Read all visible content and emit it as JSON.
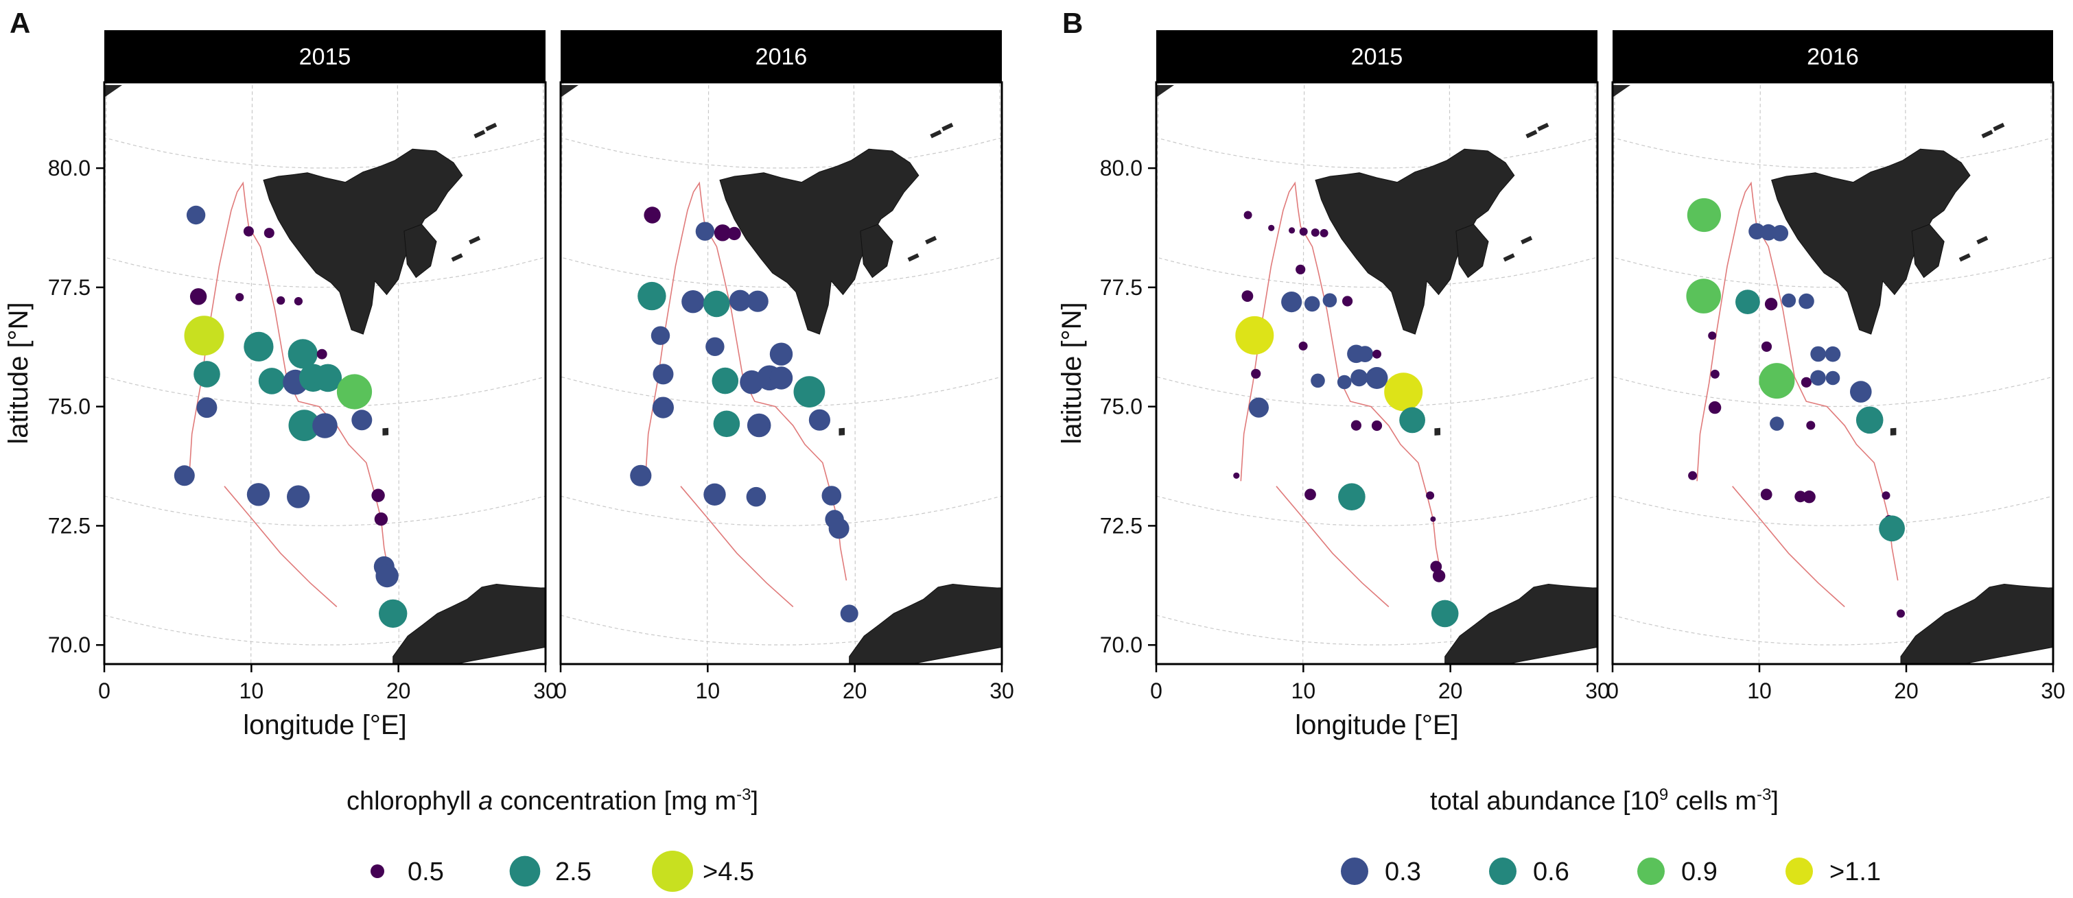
{
  "colors": {
    "strip": "#000000",
    "strip_text": "#ffffff",
    "land": "#262626",
    "grid": "#c8c8c8",
    "contour": "#e07a7a",
    "c_purple": "#440154",
    "c_indigo": "#3b4f8c",
    "c_teal": "#24877d",
    "c_green": "#5ac25a",
    "c_yellow": "#c8e020",
    "c_bright_yellow": "#dde318"
  },
  "chart_data": [
    {
      "type": "scatter",
      "panel_label": "A",
      "facets": [
        "2015",
        "2016"
      ],
      "xlabel": "longitude [°E]",
      "ylabel": "latitude [°N]",
      "xlim": [
        0,
        30
      ],
      "ylim": [
        69.6,
        81.8
      ],
      "x_ticks": [
        0,
        10,
        20,
        30
      ],
      "y_ticks": [
        70.0,
        72.5,
        75.0,
        77.5,
        80.0
      ],
      "legend": {
        "title_pre": "chlorophyll ",
        "title_italic": "a",
        "title_post": " concentration [mg m",
        "title_sup": "-3",
        "title_end": "]",
        "items": [
          {
            "label": "0.5",
            "color": "#440154",
            "size": 0.5
          },
          {
            "label": "2.5",
            "color": "#24877d",
            "size": 2.5
          },
          {
            "label": ">4.5",
            "color": "#c8e020",
            "size": 4.5
          }
        ]
      },
      "series": [
        {
          "name": "2015",
          "points": [
            {
              "x": 6.2,
              "y": 78.8,
              "v": 1.0
            },
            {
              "x": 9.8,
              "y": 78.6,
              "v": 0.3
            },
            {
              "x": 11.2,
              "y": 78.6,
              "v": 0.3
            },
            {
              "x": 6.4,
              "y": 77.1,
              "v": 0.8
            },
            {
              "x": 9.2,
              "y": 77.2,
              "v": 0.2
            },
            {
              "x": 12.0,
              "y": 77.2,
              "v": 0.2
            },
            {
              "x": 13.2,
              "y": 77.2,
              "v": 0.2
            },
            {
              "x": 6.8,
              "y": 76.3,
              "v": 4.8
            },
            {
              "x": 10.5,
              "y": 76.2,
              "v": 2.5
            },
            {
              "x": 13.5,
              "y": 76.1,
              "v": 2.5
            },
            {
              "x": 14.8,
              "y": 76.1,
              "v": 0.3
            },
            {
              "x": 7.0,
              "y": 75.5,
              "v": 2.0
            },
            {
              "x": 11.4,
              "y": 75.5,
              "v": 2.0
            },
            {
              "x": 13.0,
              "y": 75.5,
              "v": 1.8
            },
            {
              "x": 14.2,
              "y": 75.6,
              "v": 2.2
            },
            {
              "x": 15.2,
              "y": 75.6,
              "v": 2.2
            },
            {
              "x": 17.0,
              "y": 75.3,
              "v": 3.5
            },
            {
              "x": 7.0,
              "y": 74.8,
              "v": 1.2
            },
            {
              "x": 13.6,
              "y": 74.6,
              "v": 2.8
            },
            {
              "x": 15.0,
              "y": 74.6,
              "v": 1.8
            },
            {
              "x": 17.5,
              "y": 74.7,
              "v": 1.2
            },
            {
              "x": 5.5,
              "y": 73.3,
              "v": 1.2
            },
            {
              "x": 10.5,
              "y": 73.1,
              "v": 1.5
            },
            {
              "x": 13.2,
              "y": 73.1,
              "v": 1.5
            },
            {
              "x": 18.6,
              "y": 73.1,
              "v": 0.5
            },
            {
              "x": 18.8,
              "y": 72.6,
              "v": 0.5
            },
            {
              "x": 19.0,
              "y": 71.6,
              "v": 1.2
            },
            {
              "x": 19.2,
              "y": 71.4,
              "v": 1.5
            },
            {
              "x": 19.6,
              "y": 70.6,
              "v": 2.3
            }
          ]
        },
        {
          "name": "2016",
          "points": [
            {
              "x": 6.2,
              "y": 78.8,
              "v": 0.8
            },
            {
              "x": 9.8,
              "y": 78.6,
              "v": 1.0
            },
            {
              "x": 11.0,
              "y": 78.6,
              "v": 0.8
            },
            {
              "x": 11.8,
              "y": 78.6,
              "v": 0.5
            },
            {
              "x": 6.2,
              "y": 77.1,
              "v": 2.3
            },
            {
              "x": 9.0,
              "y": 77.1,
              "v": 1.5
            },
            {
              "x": 10.6,
              "y": 77.1,
              "v": 2.0
            },
            {
              "x": 12.2,
              "y": 77.2,
              "v": 1.3
            },
            {
              "x": 13.4,
              "y": 77.2,
              "v": 1.3
            },
            {
              "x": 6.8,
              "y": 76.3,
              "v": 1.0
            },
            {
              "x": 10.5,
              "y": 76.2,
              "v": 1.0
            },
            {
              "x": 15.0,
              "y": 76.1,
              "v": 1.5
            },
            {
              "x": 7.0,
              "y": 75.5,
              "v": 1.2
            },
            {
              "x": 11.2,
              "y": 75.5,
              "v": 2.0
            },
            {
              "x": 13.0,
              "y": 75.5,
              "v": 1.6
            },
            {
              "x": 14.2,
              "y": 75.6,
              "v": 1.8
            },
            {
              "x": 15.0,
              "y": 75.6,
              "v": 1.5
            },
            {
              "x": 16.9,
              "y": 75.3,
              "v": 2.8
            },
            {
              "x": 7.0,
              "y": 74.8,
              "v": 1.3
            },
            {
              "x": 11.3,
              "y": 74.6,
              "v": 2.0
            },
            {
              "x": 13.5,
              "y": 74.6,
              "v": 1.6
            },
            {
              "x": 17.6,
              "y": 74.7,
              "v": 1.3
            },
            {
              "x": 5.5,
              "y": 73.3,
              "v": 1.3
            },
            {
              "x": 10.5,
              "y": 73.1,
              "v": 1.4
            },
            {
              "x": 13.3,
              "y": 73.1,
              "v": 1.1
            },
            {
              "x": 18.4,
              "y": 73.1,
              "v": 1.1
            },
            {
              "x": 18.6,
              "y": 72.6,
              "v": 1.0
            },
            {
              "x": 18.9,
              "y": 72.4,
              "v": 1.2
            },
            {
              "x": 19.6,
              "y": 70.6,
              "v": 0.9
            }
          ]
        }
      ]
    },
    {
      "type": "scatter",
      "panel_label": "B",
      "facets": [
        "2015",
        "2016"
      ],
      "xlabel": "longitude [°E]",
      "ylabel": "latitude [°N]",
      "xlim": [
        0,
        30
      ],
      "ylim": [
        69.6,
        81.8
      ],
      "x_ticks": [
        0,
        10,
        20,
        30
      ],
      "y_ticks": [
        70.0,
        72.5,
        75.0,
        77.5,
        80.0
      ],
      "legend": {
        "title_pre": "total abundance [10",
        "title_sup1": "9",
        "title_mid": " cells m",
        "title_sup2": "-3",
        "title_end": "]",
        "items": [
          {
            "label": "0.3",
            "color": "#3b4f8c",
            "size": 0.3
          },
          {
            "label": "0.6",
            "color": "#24877d",
            "size": 0.6
          },
          {
            "label": "0.9",
            "color": "#5ac25a",
            "size": 0.9
          },
          {
            "label": ">1.1",
            "color": "#dde318",
            "size": 1.1
          }
        ]
      },
      "series": [
        {
          "name": "2015",
          "points": [
            {
              "x": 6.2,
              "y": 78.8,
              "v": 0.05
            },
            {
              "x": 7.8,
              "y": 78.6,
              "v": 0.03
            },
            {
              "x": 9.2,
              "y": 78.6,
              "v": 0.03
            },
            {
              "x": 10.0,
              "y": 78.6,
              "v": 0.05
            },
            {
              "x": 10.8,
              "y": 78.6,
              "v": 0.05
            },
            {
              "x": 11.4,
              "y": 78.6,
              "v": 0.05
            },
            {
              "x": 9.8,
              "y": 77.8,
              "v": 0.07
            },
            {
              "x": 6.2,
              "y": 77.1,
              "v": 0.1
            },
            {
              "x": 9.2,
              "y": 77.1,
              "v": 0.32
            },
            {
              "x": 10.6,
              "y": 77.1,
              "v": 0.18
            },
            {
              "x": 11.8,
              "y": 77.2,
              "v": 0.15
            },
            {
              "x": 13.0,
              "y": 77.2,
              "v": 0.08
            },
            {
              "x": 6.7,
              "y": 76.3,
              "v": 1.2
            },
            {
              "x": 10.0,
              "y": 76.2,
              "v": 0.06
            },
            {
              "x": 13.6,
              "y": 76.1,
              "v": 0.25
            },
            {
              "x": 14.2,
              "y": 76.1,
              "v": 0.2
            },
            {
              "x": 15.0,
              "y": 76.1,
              "v": 0.06
            },
            {
              "x": 6.8,
              "y": 75.5,
              "v": 0.07
            },
            {
              "x": 11.0,
              "y": 75.5,
              "v": 0.15
            },
            {
              "x": 12.8,
              "y": 75.5,
              "v": 0.15
            },
            {
              "x": 13.8,
              "y": 75.6,
              "v": 0.22
            },
            {
              "x": 15.0,
              "y": 75.6,
              "v": 0.36
            },
            {
              "x": 16.8,
              "y": 75.3,
              "v": 1.15
            },
            {
              "x": 7.0,
              "y": 74.8,
              "v": 0.3
            },
            {
              "x": 13.6,
              "y": 74.6,
              "v": 0.08
            },
            {
              "x": 15.0,
              "y": 74.6,
              "v": 0.08
            },
            {
              "x": 17.4,
              "y": 74.7,
              "v": 0.5
            },
            {
              "x": 5.5,
              "y": 73.3,
              "v": 0.03
            },
            {
              "x": 10.5,
              "y": 73.1,
              "v": 0.1
            },
            {
              "x": 13.3,
              "y": 73.1,
              "v": 0.55
            },
            {
              "x": 18.6,
              "y": 73.1,
              "v": 0.05
            },
            {
              "x": 18.8,
              "y": 72.6,
              "v": 0.02
            },
            {
              "x": 19.0,
              "y": 71.6,
              "v": 0.1
            },
            {
              "x": 19.2,
              "y": 71.4,
              "v": 0.12
            },
            {
              "x": 19.6,
              "y": 70.6,
              "v": 0.55
            }
          ]
        },
        {
          "name": "2016",
          "points": [
            {
              "x": 6.2,
              "y": 78.8,
              "v": 0.85
            },
            {
              "x": 9.8,
              "y": 78.6,
              "v": 0.2
            },
            {
              "x": 10.6,
              "y": 78.6,
              "v": 0.2
            },
            {
              "x": 11.4,
              "y": 78.6,
              "v": 0.2
            },
            {
              "x": 6.2,
              "y": 77.1,
              "v": 0.9
            },
            {
              "x": 9.2,
              "y": 77.1,
              "v": 0.45
            },
            {
              "x": 10.8,
              "y": 77.1,
              "v": 0.12
            },
            {
              "x": 12.0,
              "y": 77.2,
              "v": 0.15
            },
            {
              "x": 13.2,
              "y": 77.2,
              "v": 0.18
            },
            {
              "x": 6.8,
              "y": 76.3,
              "v": 0.05
            },
            {
              "x": 10.5,
              "y": 76.2,
              "v": 0.08
            },
            {
              "x": 14.0,
              "y": 76.1,
              "v": 0.18
            },
            {
              "x": 15.0,
              "y": 76.1,
              "v": 0.18
            },
            {
              "x": 7.0,
              "y": 75.5,
              "v": 0.06
            },
            {
              "x": 11.2,
              "y": 75.5,
              "v": 0.95
            },
            {
              "x": 13.2,
              "y": 75.5,
              "v": 0.08
            },
            {
              "x": 14.0,
              "y": 75.6,
              "v": 0.18
            },
            {
              "x": 15.0,
              "y": 75.6,
              "v": 0.15
            },
            {
              "x": 16.9,
              "y": 75.3,
              "v": 0.35
            },
            {
              "x": 7.0,
              "y": 74.8,
              "v": 0.12
            },
            {
              "x": 11.2,
              "y": 74.6,
              "v": 0.15
            },
            {
              "x": 13.5,
              "y": 74.6,
              "v": 0.06
            },
            {
              "x": 17.5,
              "y": 74.7,
              "v": 0.55
            },
            {
              "x": 5.5,
              "y": 73.3,
              "v": 0.06
            },
            {
              "x": 10.5,
              "y": 73.1,
              "v": 0.1
            },
            {
              "x": 12.8,
              "y": 73.1,
              "v": 0.1
            },
            {
              "x": 13.4,
              "y": 73.1,
              "v": 0.12
            },
            {
              "x": 18.6,
              "y": 73.1,
              "v": 0.05
            },
            {
              "x": 18.8,
              "y": 72.6,
              "v": 0.05
            },
            {
              "x": 19.0,
              "y": 72.4,
              "v": 0.5
            },
            {
              "x": 19.6,
              "y": 70.6,
              "v": 0.05
            }
          ]
        }
      ]
    }
  ]
}
